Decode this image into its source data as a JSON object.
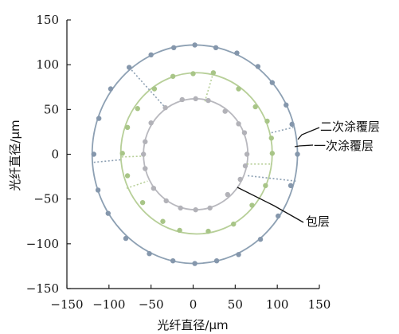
{
  "chart_data": {
    "type": "scatter",
    "title": "",
    "xlabel": "光纤直径/μm",
    "ylabel": "光纤直径/μm",
    "xlim": [
      -150,
      150
    ],
    "ylim": [
      -150,
      150
    ],
    "grid": false,
    "x_ticks": [
      "−150",
      "−100",
      "−50",
      "0",
      "50",
      "100",
      "150"
    ],
    "y_ticks": [
      "150",
      "100",
      "50",
      "0",
      "−50",
      "−100",
      "−150"
    ],
    "colors": {
      "outer": "#8da0b3",
      "outer_dot": "#8597ac",
      "middle": "#b7cf98",
      "middle_dot": "#a8c587",
      "inner": "#b8b8be",
      "inner_dot": "#b2b2b8",
      "axis": "#111111",
      "annotation": "#111111"
    },
    "series": [
      {
        "name": "二次涂覆层",
        "center": [
          2,
          0
        ],
        "radius": 122,
        "points": [
          [
            124,
            0
          ],
          [
            117.5,
            33.5
          ],
          [
            110.5,
            55
          ],
          [
            94,
            80
          ],
          [
            77,
            98
          ],
          [
            52,
            113
          ],
          [
            27,
            119
          ],
          [
            2,
            122
          ],
          [
            -23,
            119
          ],
          [
            -50,
            111
          ],
          [
            -76,
            97
          ],
          [
            -98,
            73
          ],
          [
            -112,
            40
          ],
          [
            -118,
            0
          ],
          [
            -113,
            -40
          ],
          [
            -101,
            -66
          ],
          [
            -80,
            -94
          ],
          [
            -52,
            -111
          ],
          [
            -24,
            -119
          ],
          [
            2,
            -122
          ],
          [
            28,
            -119
          ],
          [
            54,
            -112
          ],
          [
            80,
            -95
          ],
          [
            101,
            -69
          ],
          [
            116,
            -35
          ]
        ],
        "dashed_segments": [
          [
            [
              -76,
              97
            ],
            [
              -33,
              52
            ]
          ],
          [
            [
              -118,
              -9
            ],
            [
              -84,
              -6
            ]
          ],
          [
            [
              93,
              24
            ],
            [
              119,
              30
            ]
          ],
          [
            [
              65,
              -24
            ],
            [
              122,
              -30
            ]
          ]
        ]
      },
      {
        "name": "一次涂覆层",
        "center": [
          4,
          1
        ],
        "radius": 90,
        "points": [
          [
            94,
            1
          ],
          [
            93,
            18
          ],
          [
            88,
            37
          ],
          [
            74,
            53
          ],
          [
            54,
            73
          ],
          [
            24,
            91
          ],
          [
            0,
            90
          ],
          [
            -24,
            87
          ],
          [
            -46,
            73
          ],
          [
            -66,
            51
          ],
          [
            -78,
            30
          ],
          [
            -84,
            1
          ],
          [
            -78,
            -24
          ],
          [
            -60,
            -54
          ],
          [
            -36,
            -75
          ],
          [
            -16,
            -85
          ],
          [
            18,
            -86
          ],
          [
            48,
            -78
          ],
          [
            70,
            -57
          ],
          [
            86,
            -35
          ]
        ],
        "dashed_segments": [
          [
            [
              24,
              91
            ],
            [
              14,
              59
            ]
          ],
          [
            [
              -85,
              -3
            ],
            [
              -55,
              -2
            ]
          ],
          [
            [
              -79,
              -38
            ],
            [
              -54,
              -30
            ]
          ],
          [
            [
              64,
              -11
            ],
            [
              94,
              -11
            ]
          ]
        ]
      },
      {
        "name": "包层",
        "center": [
          3,
          0
        ],
        "radius": 62,
        "points": [
          [
            64,
            0
          ],
          [
            61,
            24
          ],
          [
            54,
            34
          ],
          [
            38,
            48
          ],
          [
            18,
            60
          ],
          [
            3,
            62
          ],
          [
            -13,
            61
          ],
          [
            -33,
            52
          ],
          [
            -50,
            35
          ],
          [
            -57,
            14
          ],
          [
            -59,
            0
          ],
          [
            -57,
            -16
          ],
          [
            -47,
            -38
          ],
          [
            -32,
            -52
          ],
          [
            -15,
            -60
          ],
          [
            3,
            -62
          ],
          [
            20,
            -60
          ],
          [
            41,
            -45
          ],
          [
            56,
            -28
          ],
          [
            62,
            -13
          ]
        ],
        "dashed_segments": []
      }
    ],
    "annotations": [
      {
        "text": "二次涂覆层",
        "target": "二次涂覆层"
      },
      {
        "text": "一次涂覆层",
        "target": "一次涂覆层"
      },
      {
        "text": "包层",
        "target": "包层"
      }
    ]
  }
}
